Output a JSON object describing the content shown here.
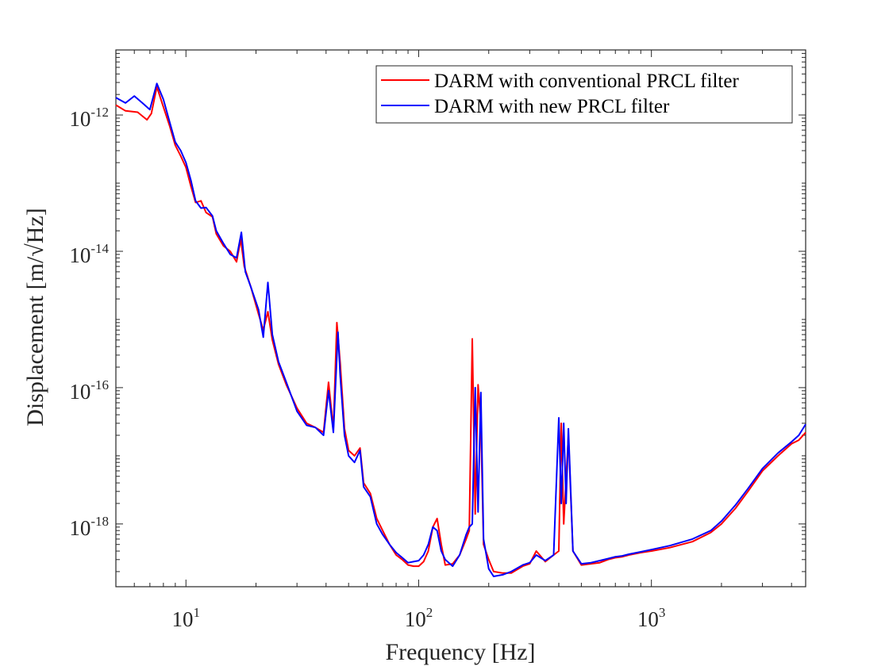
{
  "chart_data": {
    "type": "line",
    "title": "",
    "xlabel": "Frequency [Hz]",
    "ylabel": "Displacement [m/√Hz]",
    "xscale": "log",
    "yscale": "log",
    "xlim": [
      5,
      4600
    ],
    "ylim": [
      1.2e-19,
      9e-12
    ],
    "grid": false,
    "legend_position": "top-right",
    "x_ticks": [
      {
        "base": "10",
        "exp": "1",
        "value": 10
      },
      {
        "base": "10",
        "exp": "2",
        "value": 100
      },
      {
        "base": "10",
        "exp": "3",
        "value": 1000
      }
    ],
    "y_ticks": [
      {
        "base": "10",
        "exp": "-12",
        "value": 1e-12
      },
      {
        "base": "10",
        "exp": "-14",
        "value": 1e-14
      },
      {
        "base": "10",
        "exp": "-16",
        "value": 1e-16
      },
      {
        "base": "10",
        "exp": "-18",
        "value": 1e-18
      }
    ],
    "series": [
      {
        "name": "DARM with conventional PRCL filter",
        "color": "#ff0000",
        "points": [
          [
            5,
            1.4e-12
          ],
          [
            5.5,
            1.15e-12
          ],
          [
            6.2,
            1.1e-12
          ],
          [
            6.8,
            8.5e-13
          ],
          [
            7.1,
            1.05e-12
          ],
          [
            7.5,
            2.6e-12
          ],
          [
            7.9,
            1.5e-12
          ],
          [
            8.5,
            7e-13
          ],
          [
            9,
            3.6e-13
          ],
          [
            9.5,
            2.5e-13
          ],
          [
            10,
            1.7e-13
          ],
          [
            10.5,
            9e-14
          ],
          [
            11,
            5.2e-14
          ],
          [
            11.6,
            5.5e-14
          ],
          [
            12.2,
            3.7e-14
          ],
          [
            13,
            3.2e-14
          ],
          [
            13.5,
            1.8e-14
          ],
          [
            14.5,
            1.2e-14
          ],
          [
            15.5,
            1e-14
          ],
          [
            16.5,
            7e-15
          ],
          [
            17.2,
            1.5e-14
          ],
          [
            17.8,
            6e-15
          ],
          [
            19,
            3e-15
          ],
          [
            20.5,
            1.2e-15
          ],
          [
            21.5,
            7e-16
          ],
          [
            22.5,
            1.3e-15
          ],
          [
            23.5,
            5e-16
          ],
          [
            25,
            2.2e-16
          ],
          [
            27,
            1.1e-16
          ],
          [
            30,
            5e-17
          ],
          [
            33,
            3e-17
          ],
          [
            36,
            2.6e-17
          ],
          [
            39,
            2.2e-17
          ],
          [
            41,
            1.2e-16
          ],
          [
            43,
            2.5e-17
          ],
          [
            44.5,
            9e-16
          ],
          [
            46,
            2.3e-16
          ],
          [
            48,
            2.5e-17
          ],
          [
            50,
            1.2e-17
          ],
          [
            53,
            1e-17
          ],
          [
            56,
            1.3e-17
          ],
          [
            58,
            4e-18
          ],
          [
            62,
            2.8e-18
          ],
          [
            66,
            1.2e-18
          ],
          [
            70,
            8e-19
          ],
          [
            75,
            5e-19
          ],
          [
            80,
            3.5e-19
          ],
          [
            85,
            3e-19
          ],
          [
            90,
            2.5e-19
          ],
          [
            95,
            2.4e-19
          ],
          [
            100,
            2.4e-19
          ],
          [
            105,
            2.8e-19
          ],
          [
            110,
            4e-19
          ],
          [
            115,
            9e-19
          ],
          [
            120,
            1.2e-18
          ],
          [
            125,
            5e-19
          ],
          [
            130,
            2.5e-19
          ],
          [
            140,
            2.6e-19
          ],
          [
            150,
            3.5e-19
          ],
          [
            160,
            6e-19
          ],
          [
            165,
            8e-19
          ],
          [
            170,
            5.2e-16
          ],
          [
            175,
            1.4e-18
          ],
          [
            180,
            1.1e-16
          ],
          [
            185,
            3e-17
          ],
          [
            190,
            5e-19
          ],
          [
            200,
            3e-19
          ],
          [
            210,
            2e-19
          ],
          [
            230,
            1.9e-19
          ],
          [
            250,
            1.9e-19
          ],
          [
            280,
            2.4e-19
          ],
          [
            300,
            2.6e-19
          ],
          [
            320,
            4e-19
          ],
          [
            350,
            2.8e-19
          ],
          [
            380,
            3.5e-19
          ],
          [
            400,
            4e-19
          ],
          [
            410,
            3e-17
          ],
          [
            420,
            1e-18
          ],
          [
            440,
            2e-17
          ],
          [
            460,
            4e-19
          ],
          [
            500,
            2.5e-19
          ],
          [
            550,
            2.6e-19
          ],
          [
            600,
            2.7e-19
          ],
          [
            650,
            3e-19
          ],
          [
            700,
            3.2e-19
          ],
          [
            750,
            3.3e-19
          ],
          [
            800,
            3.5e-19
          ],
          [
            900,
            3.8e-19
          ],
          [
            1000,
            4e-19
          ],
          [
            1200,
            4.5e-19
          ],
          [
            1500,
            5.5e-19
          ],
          [
            1800,
            7.5e-19
          ],
          [
            2000,
            1e-18
          ],
          [
            2300,
            1.7e-18
          ],
          [
            2600,
            3e-18
          ],
          [
            3000,
            6e-18
          ],
          [
            3500,
            1e-17
          ],
          [
            4000,
            1.5e-17
          ],
          [
            4300,
            1.7e-17
          ],
          [
            4600,
            2.2e-17
          ]
        ]
      },
      {
        "name": "DARM with new PRCL filter",
        "color": "#0000ff",
        "points": [
          [
            5,
            1.8e-12
          ],
          [
            5.5,
            1.5e-12
          ],
          [
            6,
            1.9e-12
          ],
          [
            6.5,
            1.5e-12
          ],
          [
            7,
            1.2e-12
          ],
          [
            7.5,
            2.9e-12
          ],
          [
            8,
            1.7e-12
          ],
          [
            8.5,
            8e-13
          ],
          [
            9,
            4e-13
          ],
          [
            9.5,
            3e-13
          ],
          [
            10,
            2e-13
          ],
          [
            10.5,
            1.1e-13
          ],
          [
            11,
            5.5e-14
          ],
          [
            11.6,
            4.3e-14
          ],
          [
            12.2,
            4.4e-14
          ],
          [
            13,
            3.3e-14
          ],
          [
            13.5,
            2e-14
          ],
          [
            14.5,
            1.3e-14
          ],
          [
            15.5,
            9e-15
          ],
          [
            16.5,
            8e-15
          ],
          [
            17.3,
            1.9e-14
          ],
          [
            18,
            5e-15
          ],
          [
            19,
            3e-15
          ],
          [
            20.5,
            1.4e-15
          ],
          [
            21.5,
            5.5e-16
          ],
          [
            22.5,
            3.5e-15
          ],
          [
            23.5,
            6e-16
          ],
          [
            25,
            2.4e-16
          ],
          [
            27,
            1.2e-16
          ],
          [
            30,
            4.5e-17
          ],
          [
            33,
            2.8e-17
          ],
          [
            36,
            2.6e-17
          ],
          [
            39,
            2e-17
          ],
          [
            41,
            9e-17
          ],
          [
            43,
            2.2e-17
          ],
          [
            45,
            6.5e-16
          ],
          [
            46,
            1.5e-16
          ],
          [
            48,
            2e-17
          ],
          [
            50,
            1e-17
          ],
          [
            53,
            8e-18
          ],
          [
            56,
            1.2e-17
          ],
          [
            58,
            3.5e-18
          ],
          [
            62,
            2.5e-18
          ],
          [
            66,
            1e-18
          ],
          [
            70,
            7e-19
          ],
          [
            75,
            5e-19
          ],
          [
            80,
            3.8e-19
          ],
          [
            85,
            3.2e-19
          ],
          [
            90,
            2.7e-19
          ],
          [
            95,
            2.8e-19
          ],
          [
            100,
            2.9e-19
          ],
          [
            105,
            3.5e-19
          ],
          [
            110,
            5e-19
          ],
          [
            115,
            9e-19
          ],
          [
            120,
            8e-19
          ],
          [
            125,
            4e-19
          ],
          [
            130,
            3e-19
          ],
          [
            140,
            2.4e-19
          ],
          [
            150,
            3.5e-19
          ],
          [
            160,
            7e-19
          ],
          [
            165,
            9e-19
          ],
          [
            170,
            1e-18
          ],
          [
            175,
            1e-16
          ],
          [
            180,
            1.5e-18
          ],
          [
            185,
            8.5e-17
          ],
          [
            190,
            6e-19
          ],
          [
            200,
            2.2e-19
          ],
          [
            210,
            1.7e-19
          ],
          [
            230,
            1.8e-19
          ],
          [
            250,
            2e-19
          ],
          [
            280,
            2.5e-19
          ],
          [
            300,
            2.7e-19
          ],
          [
            320,
            3.5e-19
          ],
          [
            350,
            2.9e-19
          ],
          [
            380,
            3.5e-19
          ],
          [
            400,
            3.6e-17
          ],
          [
            410,
            2e-18
          ],
          [
            420,
            3e-17
          ],
          [
            430,
            2e-18
          ],
          [
            440,
            2.5e-17
          ],
          [
            460,
            4e-19
          ],
          [
            500,
            2.6e-19
          ],
          [
            550,
            2.7e-19
          ],
          [
            600,
            2.9e-19
          ],
          [
            650,
            3.1e-19
          ],
          [
            700,
            3.3e-19
          ],
          [
            750,
            3.4e-19
          ],
          [
            800,
            3.6e-19
          ],
          [
            900,
            3.9e-19
          ],
          [
            1000,
            4.2e-19
          ],
          [
            1200,
            4.8e-19
          ],
          [
            1500,
            6e-19
          ],
          [
            1800,
            8e-19
          ],
          [
            2000,
            1.1e-18
          ],
          [
            2300,
            1.9e-18
          ],
          [
            2600,
            3.3e-18
          ],
          [
            3000,
            6.5e-18
          ],
          [
            3500,
            1.1e-17
          ],
          [
            4000,
            1.6e-17
          ],
          [
            4300,
            2e-17
          ],
          [
            4600,
            2.9e-17
          ]
        ]
      }
    ]
  }
}
